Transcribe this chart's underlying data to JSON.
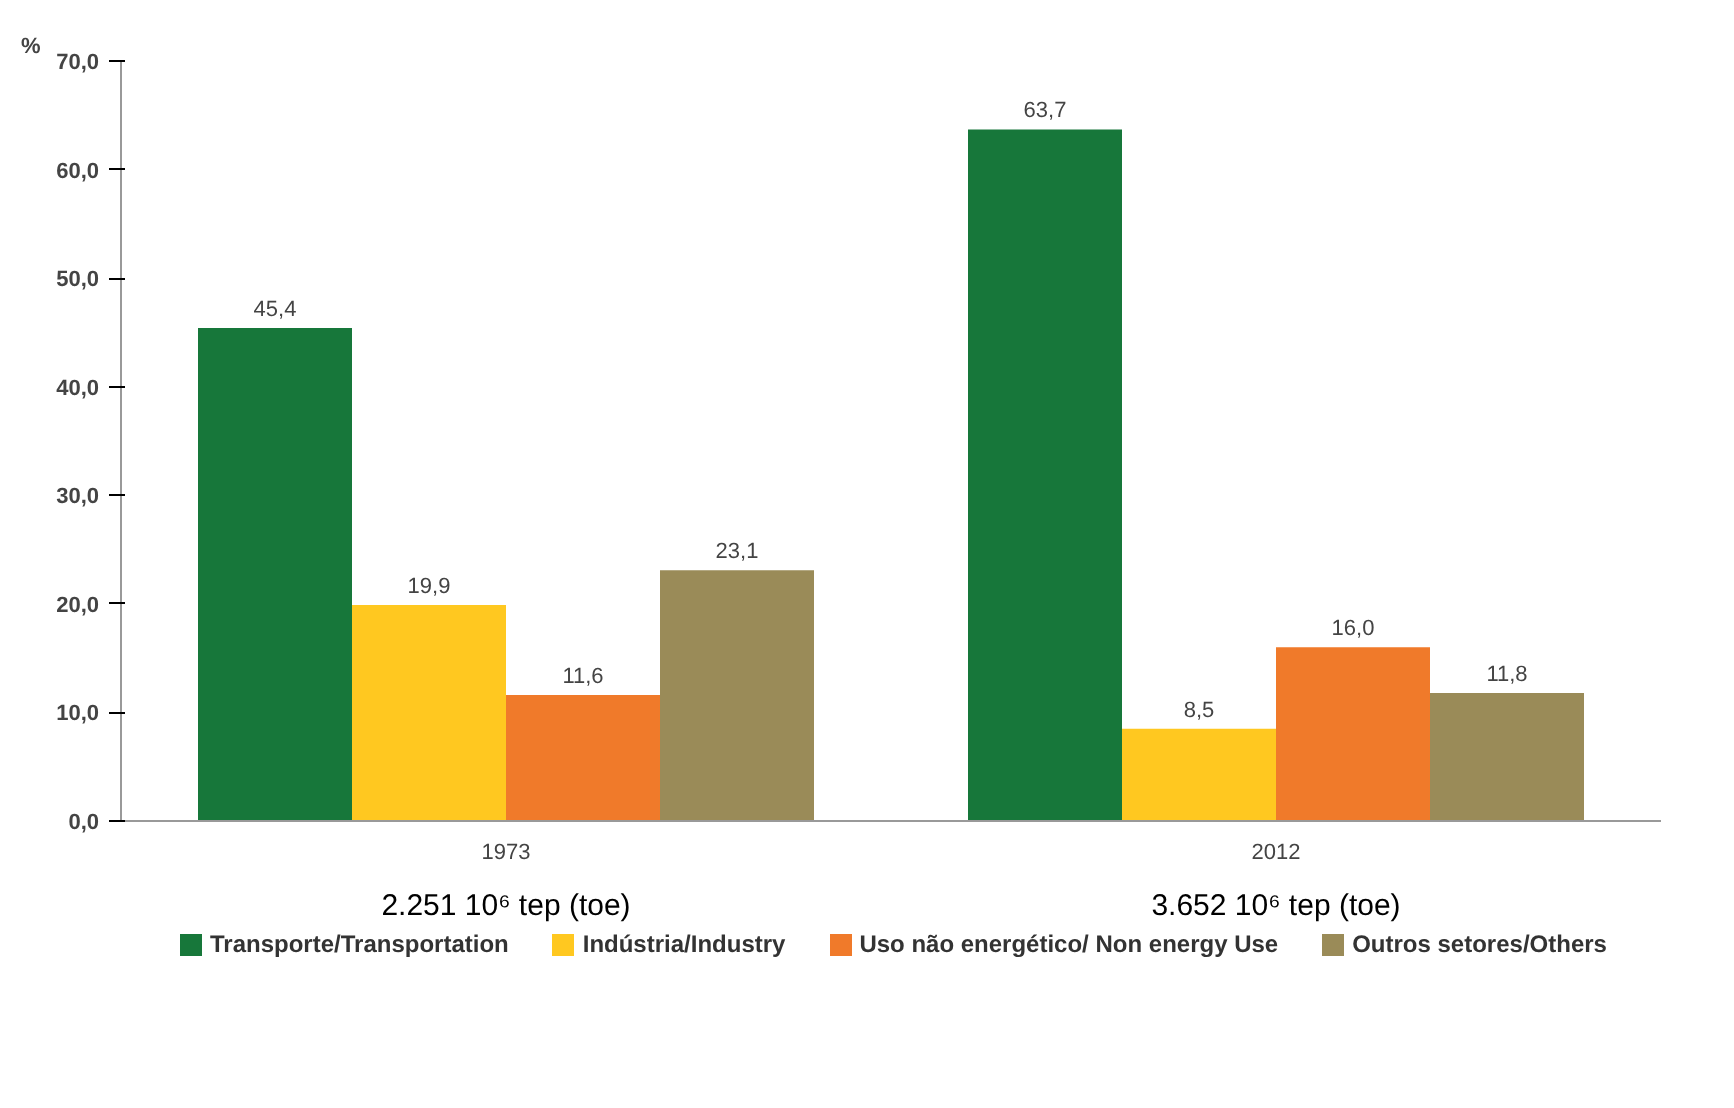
{
  "chart_data": {
    "type": "bar",
    "ylabel": "%",
    "categories": [
      "1973",
      "2012"
    ],
    "series": [
      {
        "name": "Transporte/Transportation",
        "color": "#17773a",
        "values": [
          45.4,
          63.7
        ],
        "value_labels": [
          "45,4",
          "63,7"
        ]
      },
      {
        "name": "Indústria/Industry",
        "color": "#ffc820",
        "values": [
          19.9,
          8.5
        ],
        "value_labels": [
          "19,9",
          "8,5"
        ]
      },
      {
        "name": "Uso não energético/ Non energy Use",
        "color": "#f07a2a",
        "values": [
          11.6,
          16.0
        ],
        "value_labels": [
          "11,6",
          "16,0"
        ]
      },
      {
        "name": "Outros setores/Others",
        "color": "#9a8b58",
        "values": [
          23.1,
          11.8
        ],
        "value_labels": [
          "23,1",
          "11,8"
        ]
      }
    ],
    "ylim": [
      0,
      70
    ],
    "yticks": [
      {
        "value": 0,
        "label": "0,0"
      },
      {
        "value": 10,
        "label": "10,0"
      },
      {
        "value": 20,
        "label": "20,0"
      },
      {
        "value": 30,
        "label": "30,0"
      },
      {
        "value": 40,
        "label": "40,0"
      },
      {
        "value": 50,
        "label": "50,0"
      },
      {
        "value": 60,
        "label": "60,0"
      },
      {
        "value": 70,
        "label": "70,0"
      }
    ],
    "grid": false,
    "legend": "bottom",
    "annotations": [
      "2.251 10⁶ tep (toe)",
      "3.652 10⁶ tep (toe)"
    ]
  }
}
